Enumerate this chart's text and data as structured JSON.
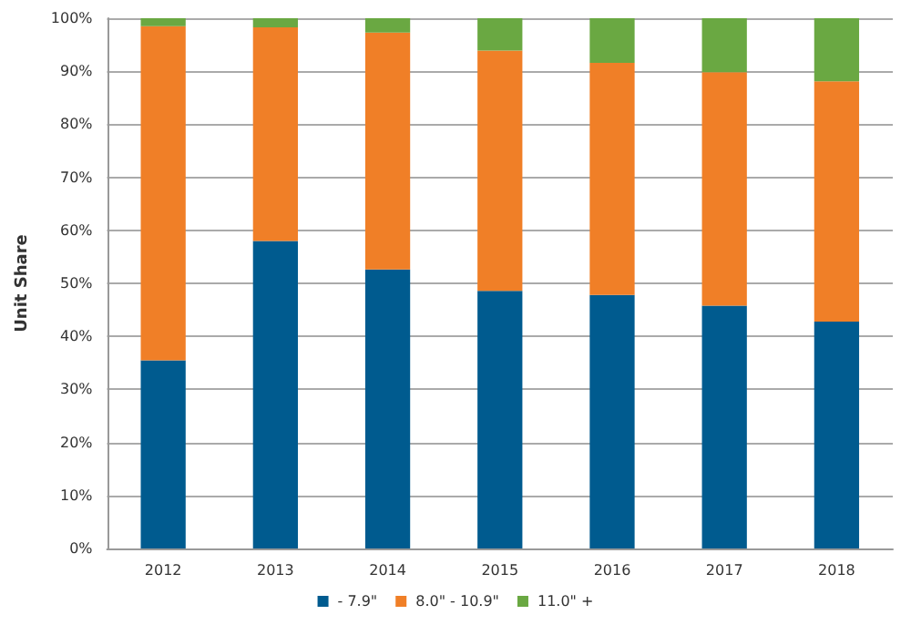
{
  "chart_data": {
    "type": "bar",
    "stacked": true,
    "ylabel": "Unit Share",
    "categories": [
      "2012",
      "2013",
      "2014",
      "2015",
      "2016",
      "2017",
      "2018"
    ],
    "series": [
      {
        "name": "- 7.9\"",
        "color": "#005b8f",
        "values": [
          35.5,
          58,
          52.6,
          48.6,
          47.8,
          45.8,
          42.8
        ]
      },
      {
        "name": "8.0\" - 10.9\"",
        "color": "#f07f27",
        "values": [
          63,
          40.3,
          44.7,
          45.3,
          43.8,
          44,
          45.3
        ]
      },
      {
        "name": "11.0\" +",
        "color": "#6aa842",
        "values": [
          1.5,
          1.7,
          2.7,
          6.1,
          8.4,
          10.2,
          11.9
        ]
      }
    ],
    "ylim": [
      0,
      100
    ],
    "yticks": [
      {
        "value": 0,
        "label": "0%"
      },
      {
        "value": 10,
        "label": "10%"
      },
      {
        "value": 20,
        "label": "20%"
      },
      {
        "value": 30,
        "label": "30%"
      },
      {
        "value": 40,
        "label": "40%"
      },
      {
        "value": 50,
        "label": "50%"
      },
      {
        "value": 60,
        "label": "60%"
      },
      {
        "value": 70,
        "label": "70%"
      },
      {
        "value": 80,
        "label": "80%"
      },
      {
        "value": 90,
        "label": "90%"
      },
      {
        "value": 100,
        "label": "100%"
      }
    ],
    "grid": "y",
    "legend": "bottom"
  }
}
